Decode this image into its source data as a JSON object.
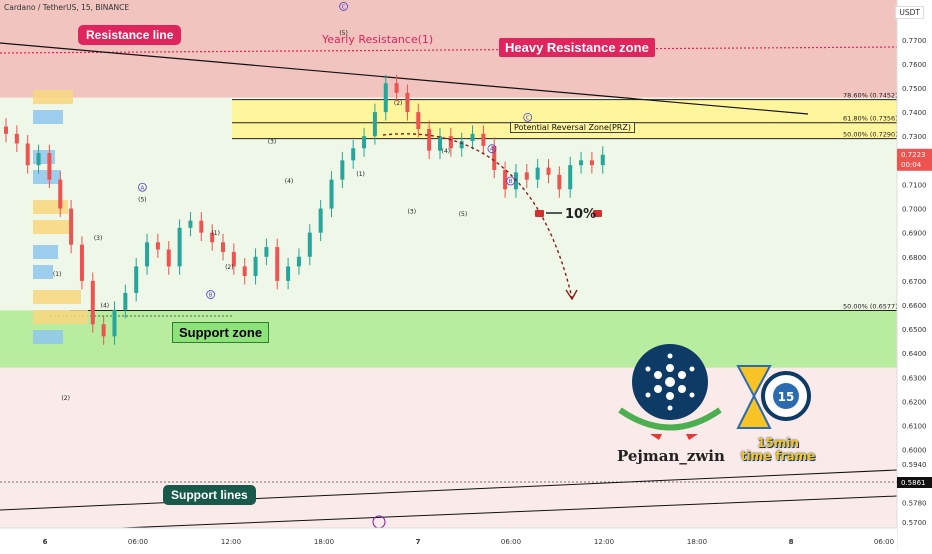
{
  "header": {
    "symbol": "Cardano / TetherUS, 15, BINANCE",
    "currency": "USDT"
  },
  "labels": {
    "resistance_line": "Resistance line",
    "yearly_resistance": "Yearly Resistance(1)",
    "heavy_resistance": "Heavy Resistance zone",
    "prz": "Potential Reversal Zone(PRZ)",
    "support_zone": "Support zone",
    "support_lines": "Support lines",
    "drop": "10%",
    "author": "Pejman_zwin",
    "timeframe_top": "15min",
    "timeframe_bottom": "time frame",
    "timer_number": "15"
  },
  "fib_levels": [
    {
      "label": "78.60% (0.7452)",
      "price": 0.7452
    },
    {
      "label": "61.80% (0.7356)",
      "price": 0.7356
    },
    {
      "label": "50.00% (0.7290)",
      "price": 0.729
    },
    {
      "label": "50.00% (0.6577)",
      "price": 0.6577
    }
  ],
  "wave_labels": [
    {
      "text": "(5)",
      "t": 19.8,
      "p": 0.772
    },
    {
      "text": "(2)",
      "t": 23.0,
      "p": 0.743
    },
    {
      "text": "(1)",
      "t": 20.8,
      "p": 0.7135
    },
    {
      "text": "(4)",
      "t": 25.8,
      "p": 0.723
    },
    {
      "text": "A",
      "t": 28.5,
      "p": 0.724,
      "circled": true
    },
    {
      "text": "B",
      "t": 29.6,
      "p": 0.7106,
      "circled": true
    },
    {
      "text": "C",
      "t": 30.6,
      "p": 0.737,
      "circled": true
    },
    {
      "text": "C",
      "t": 19.8,
      "p": 0.783,
      "circled": true
    },
    {
      "text": "(3)",
      "t": 23.8,
      "p": 0.698
    },
    {
      "text": "(5)",
      "t": 26.8,
      "p": 0.697
    },
    {
      "text": "(3)",
      "t": 15.6,
      "p": 0.727
    },
    {
      "text": "(4)",
      "t": 16.6,
      "p": 0.7106
    },
    {
      "text": "(1)",
      "t": 12.3,
      "p": 0.689
    },
    {
      "text": "(2)",
      "t": 13.1,
      "p": 0.675
    },
    {
      "text": "B",
      "t": 12.0,
      "p": 0.6635,
      "circled": true
    },
    {
      "text": "A",
      "t": 8.0,
      "p": 0.708,
      "circled": true
    },
    {
      "text": "(5)",
      "t": 8.0,
      "p": 0.703
    },
    {
      "text": "(3)",
      "t": 5.4,
      "p": 0.687
    },
    {
      "text": "(1)",
      "t": 3.0,
      "p": 0.672
    },
    {
      "text": "(4)",
      "t": 5.8,
      "p": 0.659
    },
    {
      "text": "(2)",
      "t": 3.5,
      "p": 0.6205
    }
  ],
  "chart_data": {
    "type": "candlestick",
    "title": "",
    "xlabel": "",
    "ylabel": "",
    "x_ticks": [
      "6",
      "06:00",
      "12:00",
      "18:00",
      "7",
      "06:00",
      "12:00",
      "18:00",
      "8",
      "06:00"
    ],
    "y_ticks": [
      "0.7700",
      "0.7600",
      "0.7500",
      "0.7400",
      "0.7300",
      "0.7100",
      "0.7000",
      "0.6900",
      "0.6800",
      "0.6700",
      "0.6600",
      "0.6500",
      "0.6400",
      "0.6300",
      "0.6200",
      "0.6100",
      "0.6000",
      "0.5940",
      "0.5780",
      "0.5700"
    ],
    "ylim": [
      0.5675,
      0.7865
    ],
    "current_price": {
      "value": "0.7223",
      "countdown": "00:04",
      "color": "#ef5350"
    },
    "reference_price": {
      "value": "0.5861"
    },
    "close_series": [
      0.731,
      0.727,
      0.718,
      0.723,
      0.712,
      0.7,
      0.685,
      0.67,
      0.652,
      0.647,
      0.658,
      0.665,
      0.676,
      0.686,
      0.683,
      0.676,
      0.692,
      0.695,
      0.69,
      0.686,
      0.682,
      0.676,
      0.672,
      0.68,
      0.684,
      0.67,
      0.676,
      0.68,
      0.69,
      0.7,
      0.712,
      0.72,
      0.725,
      0.73,
      0.74,
      0.752,
      0.748,
      0.74,
      0.733,
      0.724,
      0.73,
      0.725,
      0.728,
      0.731,
      0.726,
      0.716,
      0.708,
      0.715,
      0.712,
      0.717,
      0.714,
      0.708,
      0.718,
      0.72,
      0.718,
      0.7223
    ],
    "zones": [
      {
        "name": "Heavy Resistance zone",
        "from": 0.746,
        "to": 0.7865,
        "color": "#f2c4c0"
      },
      {
        "name": "PRZ",
        "from": 0.7275,
        "to": 0.746,
        "color": "#fff59d"
      },
      {
        "name": "Support zone",
        "from": 0.634,
        "to": 0.6577,
        "color": "#b8ec9e"
      }
    ],
    "projected_drop_pct": "10%"
  },
  "colors": {
    "up": "#26a69a",
    "down": "#ef5350",
    "resistance": "#e0245e",
    "support": "#17594a",
    "brand": "#0d3b66"
  }
}
